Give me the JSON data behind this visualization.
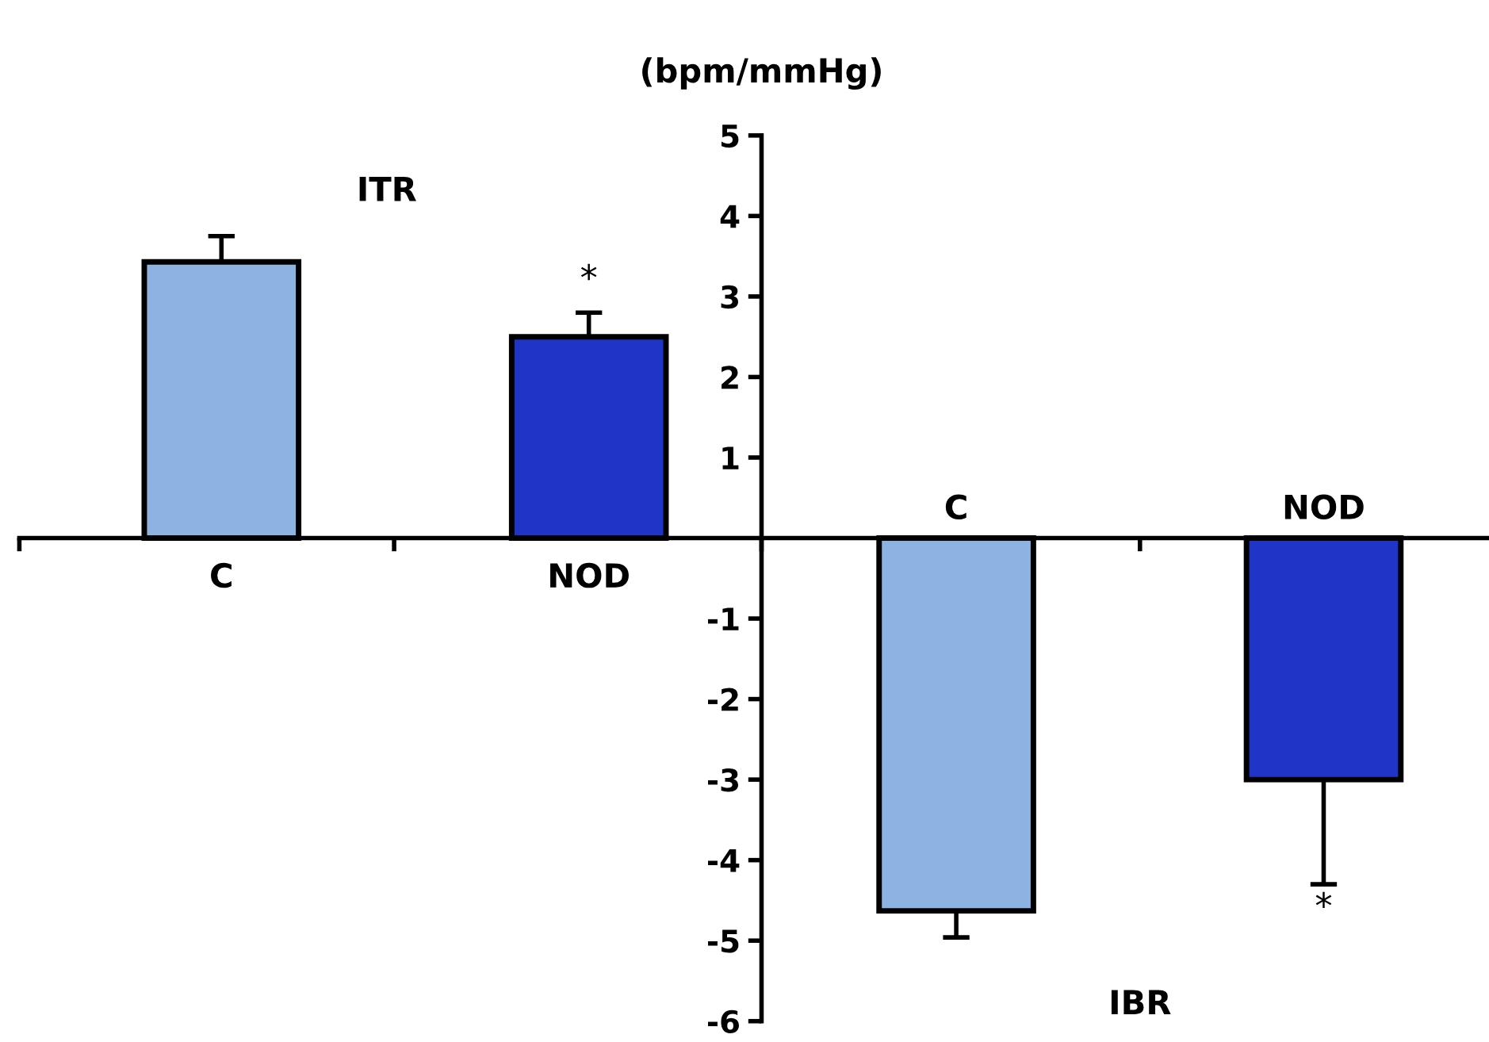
{
  "chart_data": {
    "type": "bar",
    "ylabel": "(bpm/mmHg)",
    "categories": [
      "C",
      "NOD",
      "C",
      "NOD"
    ],
    "values": [
      3.43,
      2.5,
      -4.63,
      -3.0
    ],
    "colors": [
      "#8db3e2",
      "#1f35c8",
      "#8db3e2",
      "#1f35c8"
    ],
    "errors": [
      [
        3.43,
        3.75
      ],
      [
        2.5,
        2.8
      ],
      [
        -4.96,
        -4.63
      ],
      [
        -4.3,
        -3.0
      ]
    ],
    "ylim": [
      -6,
      5
    ],
    "yticks": [
      -6,
      -5,
      -4,
      -3,
      -2,
      -1,
      1,
      2,
      3,
      4,
      5
    ],
    "annotations": [
      "ITR",
      "*",
      "IBR",
      "*"
    ],
    "grid": false,
    "legend": false
  }
}
